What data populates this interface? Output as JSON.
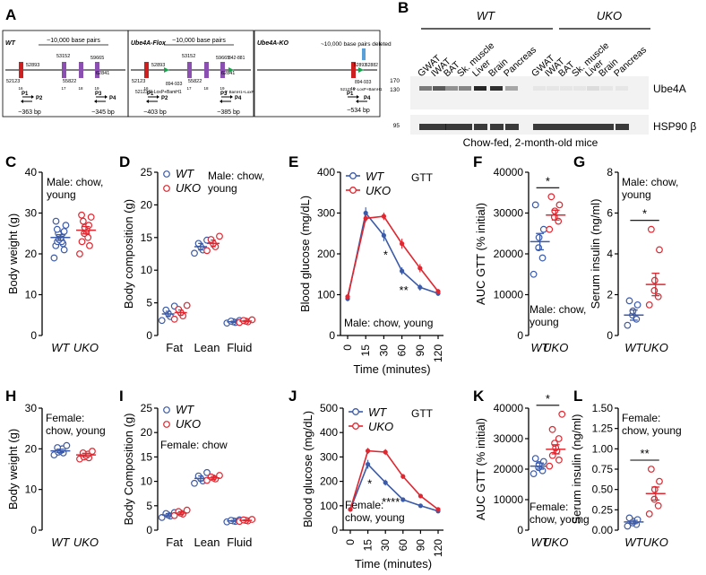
{
  "colors": {
    "wt": "#3b5aa8",
    "uko": "#e0262f",
    "axis": "#000000",
    "exon": "#cc1f1f",
    "exon2": "#8a4fb0",
    "loxp": "#16a34a",
    "lane": "#1a1a1a"
  },
  "panel_letters": [
    "A",
    "B",
    "C",
    "D",
    "E",
    "F",
    "G",
    "H",
    "I",
    "J",
    "K",
    "L"
  ],
  "panelA": {
    "wt": {
      "title": "WT",
      "span": "~10,000 base pairs",
      "pos_top": [
        "52893",
        "53152",
        "59665"
      ],
      "pos_bot": [
        "52123",
        "55822",
        "62841"
      ],
      "exons": [
        "16",
        "17",
        "18",
        "19"
      ],
      "primers": [
        "P1",
        "P2",
        "P3",
        "P4"
      ],
      "sizes": [
        "~363 bp",
        "~345 bp"
      ]
    },
    "flox": {
      "title": "Ube4A-Flox",
      "span": "~10,000 base pairs",
      "pos_top": [
        "52893",
        "53152",
        "59665",
        "842-881"
      ],
      "pos_bot": [
        "52123",
        "55822",
        "62841"
      ],
      "lox1": "894-933",
      "lox1_desc": "52123 5'-LoxP+BamH1",
      "lox2_desc": "3' BamH1+LoxP",
      "exons": [
        "16",
        "17",
        "18",
        "19"
      ],
      "primers": [
        "P1",
        "P2",
        "P3",
        "P4"
      ],
      "sizes": [
        "~403 bp",
        "~385 bp"
      ]
    },
    "ko": {
      "title": "Ube4A-KO",
      "span": "~10,000 base pairs deleted",
      "pos_top": [
        "52893",
        "62882"
      ],
      "lox": "894-933",
      "lox_desc": "52123 5'-LoxP+BamH1",
      "exons": [
        "16"
      ],
      "primers": [
        "P1",
        "P4"
      ],
      "sizes": [
        "~534 bp"
      ]
    }
  },
  "panelB": {
    "wt_label": "WT",
    "uko_label": "UKO",
    "lanes": [
      "GWAT",
      "IWAT",
      "BAT",
      "Sk. muscle",
      "Liver",
      "Brain",
      "Pancreas",
      "GWAT",
      "IWAT",
      "BAT",
      "Sk. muscle",
      "Liver",
      "Brain",
      "Pancreas"
    ],
    "mw_top": [
      "170",
      "130"
    ],
    "mw_bot": "95",
    "proteins": [
      "Ube4A",
      "HSP90 β"
    ],
    "caption": "Chow-fed, 2-month-old mice"
  },
  "chart_data": [
    {
      "id": "C",
      "type": "scatter",
      "ylabel": "Body weight (g)",
      "ylim": [
        0,
        40
      ],
      "yticks": [
        "0",
        "10",
        "20",
        "30",
        "40"
      ],
      "categories": [
        "WT",
        "UKO"
      ],
      "annotation": [
        "Male: chow,",
        "young"
      ],
      "series": [
        {
          "name": "WT",
          "mean": 24,
          "sem": 0.7,
          "points": [
            19,
            21,
            22,
            22.5,
            23,
            23,
            23.5,
            24,
            24,
            24.5,
            25,
            25,
            25.5,
            26,
            27,
            28
          ]
        },
        {
          "name": "UKO",
          "mean": 25.8,
          "sem": 0.9,
          "points": [
            20,
            22,
            23,
            24,
            25,
            25.5,
            26,
            26.5,
            27,
            28,
            29,
            29.5
          ]
        }
      ]
    },
    {
      "id": "D",
      "type": "scatter",
      "ylabel": "Body composition (g)",
      "ylim": [
        0,
        25
      ],
      "yticks": [
        "0",
        "5",
        "10",
        "15",
        "20",
        "25"
      ],
      "categories": [
        "Fat",
        "Lean",
        "Fluid"
      ],
      "legend": [
        "WT",
        "UKO"
      ],
      "annotation": [
        "Male: chow,",
        "young"
      ],
      "series": [
        {
          "name": "WT",
          "means": [
            3.3,
            13.6,
            2.1
          ],
          "sems": [
            0.4,
            0.5,
            0.1
          ],
          "points": [
            [
              2.3,
              2.9,
              3.4,
              3.9,
              4.5
            ],
            [
              12.6,
              13.1,
              13.6,
              14.1,
              14.6
            ],
            [
              1.9,
              2,
              2.1,
              2.2,
              2.3
            ]
          ]
        },
        {
          "name": "UKO",
          "means": [
            3.5,
            14.1,
            2.2
          ],
          "sems": [
            0.4,
            0.5,
            0.1
          ],
          "points": [
            [
              2.5,
              3,
              3.5,
              4,
              4.6
            ],
            [
              13,
              13.6,
              14.1,
              14.7,
              15.2
            ],
            [
              2,
              2.1,
              2.2,
              2.3,
              2.4
            ]
          ]
        }
      ]
    },
    {
      "id": "E",
      "type": "line",
      "title": "GTT",
      "xlabel": "Time (minutes)",
      "ylabel": "Blood glucose (mg/dL)",
      "ylim": [
        0,
        400
      ],
      "yticks": [
        "0",
        "100",
        "200",
        "300",
        "400"
      ],
      "x": [
        0,
        15,
        30,
        60,
        90,
        120
      ],
      "xticks": [
        "0",
        "15",
        "30",
        "60",
        "90",
        "120"
      ],
      "annotation": [
        "Male: chow, young"
      ],
      "sig": [
        {
          "x": 30,
          "label": "*"
        },
        {
          "x": 60,
          "label": "**"
        }
      ],
      "series": [
        {
          "name": "WT",
          "values": [
            90,
            300,
            245,
            158,
            118,
            103
          ],
          "sems": [
            6,
            14,
            14,
            9,
            8,
            6
          ]
        },
        {
          "name": "UKO",
          "values": [
            95,
            287,
            292,
            225,
            165,
            108
          ],
          "sems": [
            6,
            9,
            9,
            12,
            10,
            6
          ]
        }
      ]
    },
    {
      "id": "F",
      "type": "scatter",
      "ylabel": "AUC GTT (% initial)",
      "ylim": [
        0,
        40000
      ],
      "yticks": [
        "0",
        "10000",
        "20000",
        "30000",
        "40000"
      ],
      "categories": [
        "WT",
        "UKO"
      ],
      "annotation": [
        "Male: chow,",
        "young"
      ],
      "sig": "*",
      "series": [
        {
          "name": "WT",
          "mean": 23000,
          "sem": 2000,
          "points": [
            15000,
            19000,
            21500,
            24000,
            26000,
            32000
          ]
        },
        {
          "name": "UKO",
          "mean": 29500,
          "sem": 1200,
          "points": [
            26000,
            28000,
            29000,
            30500,
            32000,
            34000
          ]
        }
      ]
    },
    {
      "id": "G",
      "type": "scatter",
      "ylabel": "Serum insulin (ng/ml)",
      "ylim": [
        0,
        8
      ],
      "yticks": [
        "0",
        "2",
        "4",
        "6",
        "8"
      ],
      "categories": [
        "WT",
        "UKO"
      ],
      "annotation": [
        "Male: chow,",
        "young"
      ],
      "sig": "*",
      "series": [
        {
          "name": "WT",
          "mean": 1.0,
          "sem": 0.25,
          "points": [
            0.5,
            0.8,
            1,
            1.2,
            1.5,
            1.7
          ]
        },
        {
          "name": "UKO",
          "mean": 2.5,
          "sem": 0.55,
          "points": [
            1.5,
            1.9,
            2.2,
            2.7,
            4.2,
            5.2
          ]
        }
      ]
    },
    {
      "id": "H",
      "type": "scatter",
      "ylabel": "Body weight (g)",
      "ylim": [
        0,
        30
      ],
      "yticks": [
        "0",
        "10",
        "20",
        "30"
      ],
      "categories": [
        "WT",
        "UKO"
      ],
      "annotation": [
        "Female:",
        "chow, young"
      ],
      "series": [
        {
          "name": "WT",
          "mean": 19.5,
          "sem": 0.4,
          "points": [
            18.5,
            19,
            19.2,
            19.5,
            20,
            20.3,
            20.8
          ]
        },
        {
          "name": "UKO",
          "mean": 18.5,
          "sem": 0.4,
          "points": [
            17.5,
            17.8,
            18,
            18.3,
            18.7,
            19,
            19.4
          ]
        }
      ]
    },
    {
      "id": "I",
      "type": "scatter",
      "ylabel": "Body Composition (g)",
      "ylim": [
        0,
        25
      ],
      "yticks": [
        "0",
        "5",
        "10",
        "15",
        "20",
        "25"
      ],
      "categories": [
        "Fat",
        "Lean",
        "Fluid"
      ],
      "legend": [
        "WT",
        "UKO"
      ],
      "annotation": [
        "Female: chow"
      ],
      "series": [
        {
          "name": "WT",
          "means": [
            3.1,
            10.6,
            1.9
          ],
          "sems": [
            0.3,
            0.5,
            0.1
          ],
          "points": [
            [
              2.6,
              2.9,
              3.1,
              3.4,
              3.6
            ],
            [
              9.6,
              10.1,
              10.6,
              11.1,
              11.8
            ],
            [
              1.7,
              1.8,
              1.9,
              2,
              2.1
            ]
          ]
        },
        {
          "name": "UKO",
          "means": [
            3.5,
            10.7,
            2
          ],
          "sems": [
            0.3,
            0.3,
            0.1
          ],
          "points": [
            [
              3,
              3.3,
              3.5,
              3.8,
              4.1
            ],
            [
              10.2,
              10.5,
              10.7,
              10.9,
              11.2
            ],
            [
              1.8,
              1.9,
              2,
              2.1,
              2.2
            ]
          ]
        }
      ]
    },
    {
      "id": "J",
      "type": "line",
      "title": "GTT",
      "xlabel": "Time (minutes)",
      "ylabel": "Blood glucose (mg/dL)",
      "ylim": [
        0,
        500
      ],
      "yticks": [
        "0",
        "100",
        "200",
        "300",
        "400",
        "500"
      ],
      "x": [
        0,
        15,
        30,
        60,
        90,
        120
      ],
      "xticks": [
        "0",
        "15",
        "30",
        "60",
        "90",
        "120"
      ],
      "annotation": [
        "Female:",
        "chow, young"
      ],
      "sig": [
        {
          "x": 15,
          "label": "*"
        },
        {
          "x": 30,
          "label": "****"
        }
      ],
      "series": [
        {
          "name": "WT",
          "values": [
            85,
            270,
            195,
            125,
            100,
            78
          ],
          "sems": [
            5,
            18,
            12,
            8,
            6,
            4
          ]
        },
        {
          "name": "UKO",
          "values": [
            85,
            325,
            320,
            220,
            140,
            85
          ],
          "sems": [
            5,
            12,
            12,
            10,
            8,
            5
          ]
        }
      ]
    },
    {
      "id": "K",
      "type": "scatter",
      "ylabel": "AUC GTT (% initial)",
      "ylim": [
        0,
        40000
      ],
      "yticks": [
        "0",
        "10000",
        "20000",
        "30000",
        "40000"
      ],
      "categories": [
        "WT",
        "UKO"
      ],
      "annotation": [
        "Female:",
        "chow, young"
      ],
      "sig": "*",
      "series": [
        {
          "name": "WT",
          "mean": 21000,
          "sem": 1000,
          "points": [
            18500,
            19500,
            20500,
            21500,
            22500,
            23500
          ]
        },
        {
          "name": "UKO",
          "mean": 26500,
          "sem": 1500,
          "points": [
            21000,
            23000,
            24500,
            26000,
            27000,
            28500,
            30000,
            33000,
            38000
          ]
        }
      ]
    },
    {
      "id": "L",
      "type": "scatter",
      "ylabel": "Serum insulin (ng/ml)",
      "ylim": [
        0,
        1.5
      ],
      "yticks": [
        "0.00",
        "0.25",
        "0.50",
        "0.75",
        "1.00",
        "1.25",
        "1.50"
      ],
      "categories": [
        "WT",
        "UKO"
      ],
      "annotation": [
        "Female:",
        "chow, young"
      ],
      "sig": "**",
      "series": [
        {
          "name": "WT",
          "mean": 0.1,
          "sem": 0.02,
          "points": [
            0.05,
            0.07,
            0.09,
            0.11,
            0.13,
            0.15
          ]
        },
        {
          "name": "UKO",
          "mean": 0.45,
          "sem": 0.08,
          "points": [
            0.2,
            0.3,
            0.38,
            0.5,
            0.6,
            0.75
          ]
        }
      ]
    }
  ]
}
